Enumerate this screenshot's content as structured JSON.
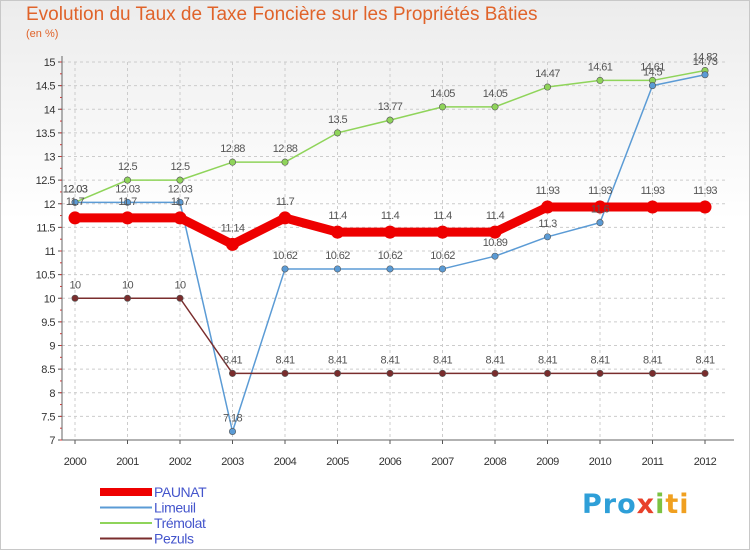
{
  "chart_data": {
    "type": "line",
    "title": "Evolution du Taux de Taxe Foncière sur les Propriétés Bâties",
    "unit_label": "(en %)",
    "x": [
      "2000",
      "2001",
      "2002",
      "2003",
      "2004",
      "2005",
      "2006",
      "2007",
      "2008",
      "2009",
      "2010",
      "2011",
      "2012"
    ],
    "ylim": [
      7,
      15
    ],
    "yticks": [
      "7",
      "7.5",
      "8",
      "8.5",
      "9",
      "9.5",
      "10",
      "10.5",
      "11",
      "11.5",
      "12",
      "12.5",
      "13",
      "13.5",
      "14",
      "14.5",
      "15"
    ],
    "series": [
      {
        "name": "PAUNAT",
        "color": "#ee0000",
        "values": [
          11.7,
          11.7,
          11.7,
          11.14,
          11.7,
          11.4,
          11.4,
          11.4,
          11.4,
          11.93,
          11.93,
          11.93,
          11.93
        ],
        "labels": [
          "11.7",
          "11.7",
          "11.7",
          "11.14",
          "11.7",
          "11.4",
          "11.4",
          "11.4",
          "11.4",
          "11.93",
          "11.93",
          "11.93",
          "11.93"
        ]
      },
      {
        "name": "Limeuil",
        "color": "#5b9bd5",
        "values": [
          12.03,
          12.03,
          12.03,
          7.18,
          10.62,
          10.62,
          10.62,
          10.62,
          10.89,
          11.3,
          11.6,
          14.5,
          14.73
        ],
        "labels": [
          "12.03",
          "12.03",
          "12.03",
          "7.18",
          "10.62",
          "10.62",
          "10.62",
          "10.62",
          "10.89",
          "11.3",
          "11.6",
          "14.5",
          "14.73"
        ]
      },
      {
        "name": "Trémolat",
        "color": "#8fd45a",
        "values": [
          12.03,
          12.5,
          12.5,
          12.88,
          12.88,
          13.5,
          13.77,
          14.05,
          14.05,
          14.47,
          14.61,
          14.61,
          14.82
        ],
        "labels": [
          "12.03",
          "12.5",
          "12.5",
          "12.88",
          "12.88",
          "13.5",
          "13.77",
          "14.05",
          "14.05",
          "14.47",
          "14.61",
          "14.61",
          "14.82"
        ]
      },
      {
        "name": "Pezuls",
        "color": "#7a2d2d",
        "values": [
          10,
          10,
          10,
          8.41,
          8.41,
          8.41,
          8.41,
          8.41,
          8.41,
          8.41,
          8.41,
          8.41,
          8.41
        ],
        "labels": [
          "10",
          "10",
          "10",
          "8.41",
          "8.41",
          "8.41",
          "8.41",
          "8.41",
          "8.41",
          "8.41",
          "8.41",
          "8.41",
          "8.41"
        ]
      }
    ],
    "legend_position": "bottom-left"
  },
  "logo": {
    "p1": "Pro",
    "p2": "x",
    "p3": "i",
    "p4": "ti"
  }
}
